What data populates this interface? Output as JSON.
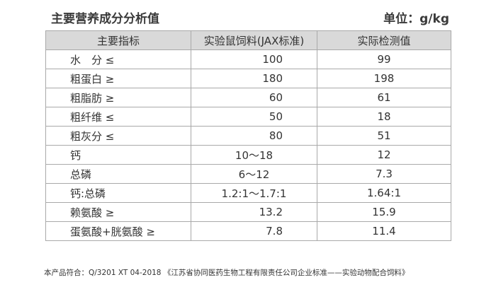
{
  "title": "主要营养成分分析值",
  "unit": "单位：g/kg",
  "table": {
    "headers": [
      "主要指标",
      "实验鼠饲料(JAX标准)",
      "实际检测值"
    ],
    "rows": [
      {
        "label": "水　分 ≤",
        "standard": "100",
        "actual": "99"
      },
      {
        "label": "粗蛋白 ≥",
        "standard": "180",
        "actual": "198"
      },
      {
        "label": "粗脂肪 ≥",
        "standard": "60",
        "actual": "61"
      },
      {
        "label": "粗纤维 ≤",
        "standard": "50",
        "actual": "18"
      },
      {
        "label": "粗灰分 ≤",
        "standard": "80",
        "actual": "51"
      },
      {
        "label": "钙",
        "standard": "10～18",
        "actual": "12"
      },
      {
        "label": "总磷",
        "standard": "6～12",
        "actual": "7.3"
      },
      {
        "label": "钙:总磷",
        "standard": "1.2:1～1.7:1",
        "actual": "1.64:1"
      },
      {
        "label": "赖氨酸 ≥",
        "standard": "13.2",
        "actual": "15.9"
      },
      {
        "label": "蛋氨酸+胱氨酸 ≥",
        "standard": "7.8",
        "actual": "11.4"
      }
    ]
  },
  "footer": "本产品符合：Q/3201 XT 04-2018 《江苏省协同医药生物工程有限责任公司企业标准——实验动物配合饲料》"
}
